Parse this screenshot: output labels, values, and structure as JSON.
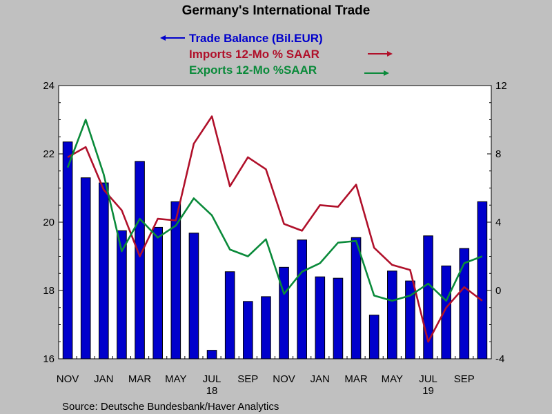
{
  "chart_data": {
    "type": "bar+line",
    "title": "Germany's International Trade",
    "source": "Source:  Deutsche Bundesbank/Haver Analytics",
    "months": [
      "2017-11",
      "2017-12",
      "2018-01",
      "2018-02",
      "2018-03",
      "2018-04",
      "2018-05",
      "2018-06",
      "2018-07",
      "2018-08",
      "2018-09",
      "2018-10",
      "2018-11",
      "2018-12",
      "2019-01",
      "2019-02",
      "2019-03",
      "2019-04",
      "2019-05",
      "2019-06",
      "2019-07",
      "2019-08",
      "2019-09",
      "2019-10"
    ],
    "x_tick_labels": [
      {
        "label": "NOV",
        "index": 0
      },
      {
        "label": "JAN",
        "index": 2
      },
      {
        "label": "MAR",
        "index": 4
      },
      {
        "label": "MAY",
        "index": 6
      },
      {
        "label": "JUL",
        "index": 8
      },
      {
        "label": "SEP",
        "index": 10
      },
      {
        "label": "NOV",
        "index": 12
      },
      {
        "label": "JAN",
        "index": 14
      },
      {
        "label": "MAR",
        "index": 16
      },
      {
        "label": "MAY",
        "index": 18
      },
      {
        "label": "JUL",
        "index": 20
      },
      {
        "label": "SEP",
        "index": 22
      }
    ],
    "year_labels": [
      {
        "label": "18",
        "index": 8
      },
      {
        "label": "19",
        "index": 20
      }
    ],
    "left_axis": {
      "min": 16,
      "max": 24,
      "ticks": [
        "16",
        "18",
        "20",
        "22",
        "24"
      ]
    },
    "right_axis": {
      "min": -4,
      "max": 12,
      "ticks": [
        "-4",
        "0",
        "4",
        "8",
        "12"
      ]
    },
    "series": [
      {
        "name": "Trade Balance (Bil.EUR)",
        "legend_label": "Trade Balance (Bil.EUR)",
        "axis": "left",
        "kind": "bar",
        "color": "#0000cc",
        "values": [
          22.35,
          21.3,
          21.15,
          19.75,
          21.78,
          19.85,
          20.6,
          19.68,
          16.25,
          18.55,
          17.68,
          17.82,
          18.68,
          19.48,
          18.4,
          18.36,
          19.55,
          17.28,
          18.57,
          18.28,
          19.6,
          18.72,
          19.23,
          20.6
        ]
      },
      {
        "name": "Imports 12-Mo % SAAR",
        "legend_label": "Imports 12-Mo % SAAR",
        "axis": "right",
        "kind": "line",
        "color": "#b0102a",
        "values": [
          7.8,
          8.4,
          5.9,
          4.7,
          2.0,
          4.2,
          4.1,
          8.6,
          10.2,
          6.1,
          7.8,
          7.1,
          3.9,
          3.5,
          5.0,
          4.9,
          6.2,
          2.5,
          1.5,
          1.2,
          -3.0,
          -1.0,
          0.2,
          -0.6
        ]
      },
      {
        "name": "Exports 12-Mo %SAAR",
        "legend_label": "Exports 12-Mo %SAAR",
        "axis": "right",
        "kind": "line",
        "color": "#0a8a3a",
        "values": [
          7.2,
          10.0,
          6.8,
          2.3,
          4.2,
          3.1,
          3.8,
          5.4,
          4.4,
          2.4,
          2.0,
          3.0,
          -0.2,
          1.1,
          1.6,
          2.8,
          2.9,
          -0.3,
          -0.6,
          -0.3,
          0.4,
          -0.6,
          1.6,
          2.0
        ]
      }
    ],
    "colors": {
      "background": "#c0c0c0",
      "plot_bg": "#ffffff",
      "bar_outline": "#000000"
    }
  }
}
